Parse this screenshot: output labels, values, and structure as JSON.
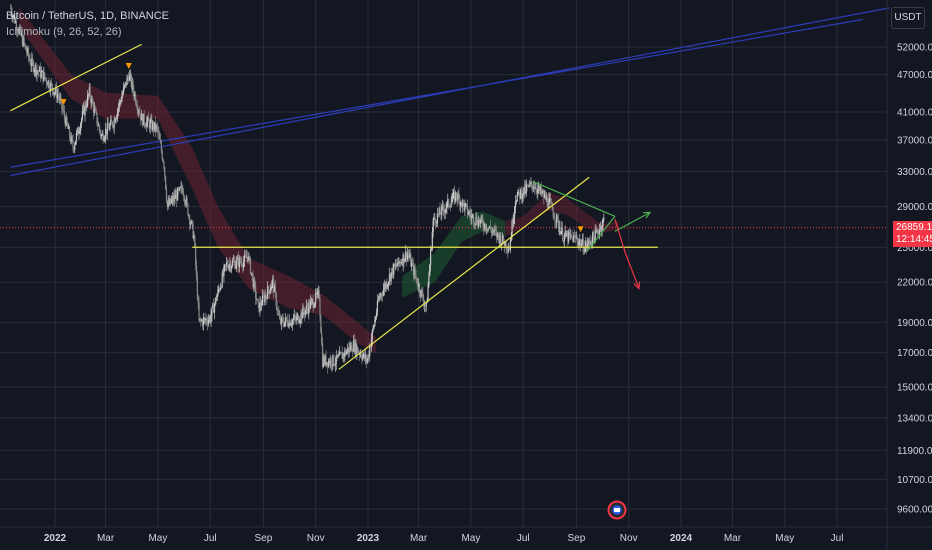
{
  "header": {
    "symbol_line": "Bitcoin / TetherUS, 1D, BINANCE",
    "indicator_line": "Ichimoku (9, 26, 52, 26)"
  },
  "currency_label": "USDT",
  "last_price": {
    "value": "26859.13",
    "countdown": "12:14:45"
  },
  "colors": {
    "background": "#131722",
    "grid": "#2a2e39",
    "bull_candle": "#c8c8c8",
    "bear_candle": "#8a8a8a",
    "trendline_yellow": "#e8e84a",
    "channel_blue": "#2b3db8",
    "triangle_green": "#4caf50",
    "projection_green": "#4caf50",
    "projection_red": "#f23645",
    "price_line": "#f23645",
    "cloud_red": "#6b2230",
    "cloud_green": "#1e5c32"
  },
  "chart_data": {
    "type": "candlestick",
    "y_scale": "log",
    "y_ticks": [
      "52000.00",
      "47000.00",
      "41000.00",
      "37000.00",
      "33000.00",
      "29000.00",
      "25000.00",
      "22000.00",
      "19000.00",
      "17000.00",
      "15000.00",
      "13400.00",
      "11900.00",
      "10700.00",
      "9600.00"
    ],
    "x_ticks": [
      {
        "label": "2022",
        "date": "2022-01-01",
        "year": true
      },
      {
        "label": "Mar",
        "date": "2022-03-01"
      },
      {
        "label": "May",
        "date": "2022-05-01"
      },
      {
        "label": "Jul",
        "date": "2022-07-01"
      },
      {
        "label": "Sep",
        "date": "2022-09-01"
      },
      {
        "label": "Nov",
        "date": "2022-11-01"
      },
      {
        "label": "2023",
        "date": "2023-01-01",
        "year": true
      },
      {
        "label": "Mar",
        "date": "2023-03-01"
      },
      {
        "label": "May",
        "date": "2023-05-01"
      },
      {
        "label": "Jul",
        "date": "2023-07-01"
      },
      {
        "label": "Sep",
        "date": "2023-09-01"
      },
      {
        "label": "Nov",
        "date": "2023-11-01"
      },
      {
        "label": "2024",
        "date": "2024-01-01",
        "year": true
      },
      {
        "label": "Mar",
        "date": "2024-03-01"
      },
      {
        "label": "May",
        "date": "2024-05-01"
      },
      {
        "label": "Jul",
        "date": "2024-07-01"
      }
    ],
    "close_path": [
      [
        "2021-11-10",
        60000
      ],
      [
        "2021-12-04",
        49000
      ],
      [
        "2021-12-20",
        46500
      ],
      [
        "2022-01-05",
        43500
      ],
      [
        "2022-01-22",
        36000
      ],
      [
        "2022-02-10",
        44000
      ],
      [
        "2022-02-24",
        37500
      ],
      [
        "2022-03-10",
        39500
      ],
      [
        "2022-03-28",
        47000
      ],
      [
        "2022-04-12",
        40000
      ],
      [
        "2022-04-30",
        38500
      ],
      [
        "2022-05-08",
        34000
      ],
      [
        "2022-05-12",
        29000
      ],
      [
        "2022-05-30",
        31000
      ],
      [
        "2022-06-12",
        26000
      ],
      [
        "2022-06-18",
        19000
      ],
      [
        "2022-07-01",
        19300
      ],
      [
        "2022-07-20",
        23500
      ],
      [
        "2022-08-10",
        23800
      ],
      [
        "2022-08-14",
        24300
      ],
      [
        "2022-08-26",
        20000
      ],
      [
        "2022-09-12",
        22000
      ],
      [
        "2022-09-20",
        19000
      ],
      [
        "2022-10-10",
        19200
      ],
      [
        "2022-11-05",
        21000
      ],
      [
        "2022-11-09",
        16500
      ],
      [
        "2022-11-25",
        16500
      ],
      [
        "2022-12-15",
        17500
      ],
      [
        "2022-12-31",
        16500
      ],
      [
        "2023-01-14",
        20800
      ],
      [
        "2023-01-30",
        23000
      ],
      [
        "2023-02-16",
        24500
      ],
      [
        "2023-03-10",
        20000
      ],
      [
        "2023-03-18",
        27500
      ],
      [
        "2023-04-14",
        30300
      ],
      [
        "2023-05-01",
        28000
      ],
      [
        "2023-05-20",
        27000
      ],
      [
        "2023-06-15",
        25000
      ],
      [
        "2023-06-22",
        30000
      ],
      [
        "2023-07-13",
        31500
      ],
      [
        "2023-08-01",
        29300
      ],
      [
        "2023-08-17",
        26000
      ],
      [
        "2023-09-01",
        25800
      ],
      [
        "2023-09-11",
        25000
      ],
      [
        "2023-09-25",
        26300
      ],
      [
        "2023-10-04",
        27800
      ]
    ],
    "last_close": 26859.13,
    "annotations": {
      "yellow_top_trendline": [
        [
          "2021-11-10",
          41200
        ],
        [
          "2022-04-12",
          52500
        ]
      ],
      "blue_channel_upper": [
        [
          "2021-11-10",
          33500
        ],
        [
          "2024-07-31",
          57500
        ]
      ],
      "blue_channel_lower": [
        [
          "2021-11-10",
          32500
        ],
        [
          "2024-08-31",
          60000
        ]
      ],
      "yellow_support_line": [
        [
          "2022-06-10",
          25000
        ],
        [
          "2023-12-05",
          25000
        ]
      ],
      "yellow_rising_trendline": [
        [
          "2022-11-28",
          16000
        ],
        [
          "2023-09-16",
          32300
        ]
      ],
      "triangle_upper": [
        [
          "2023-07-12",
          31800
        ],
        [
          "2023-10-16",
          28000
        ]
      ],
      "triangle_lower": [
        [
          "2023-09-13",
          24600
        ],
        [
          "2023-10-16",
          28000
        ]
      ],
      "projection_up": [
        [
          "2023-10-16",
          26500
        ],
        [
          "2023-11-26",
          28400
        ]
      ],
      "projection_down_a": [
        [
          "2023-10-16",
          27700
        ],
        [
          "2023-10-28",
          24500
        ]
      ],
      "projection_down_b": [
        [
          "2023-10-28",
          24500
        ],
        [
          "2023-11-13",
          21500
        ]
      ],
      "markers_orange": [
        [
          "2022-01-11",
          42500
        ],
        [
          "2022-03-28",
          48500
        ],
        [
          "2023-09-06",
          26700
        ]
      ]
    }
  }
}
